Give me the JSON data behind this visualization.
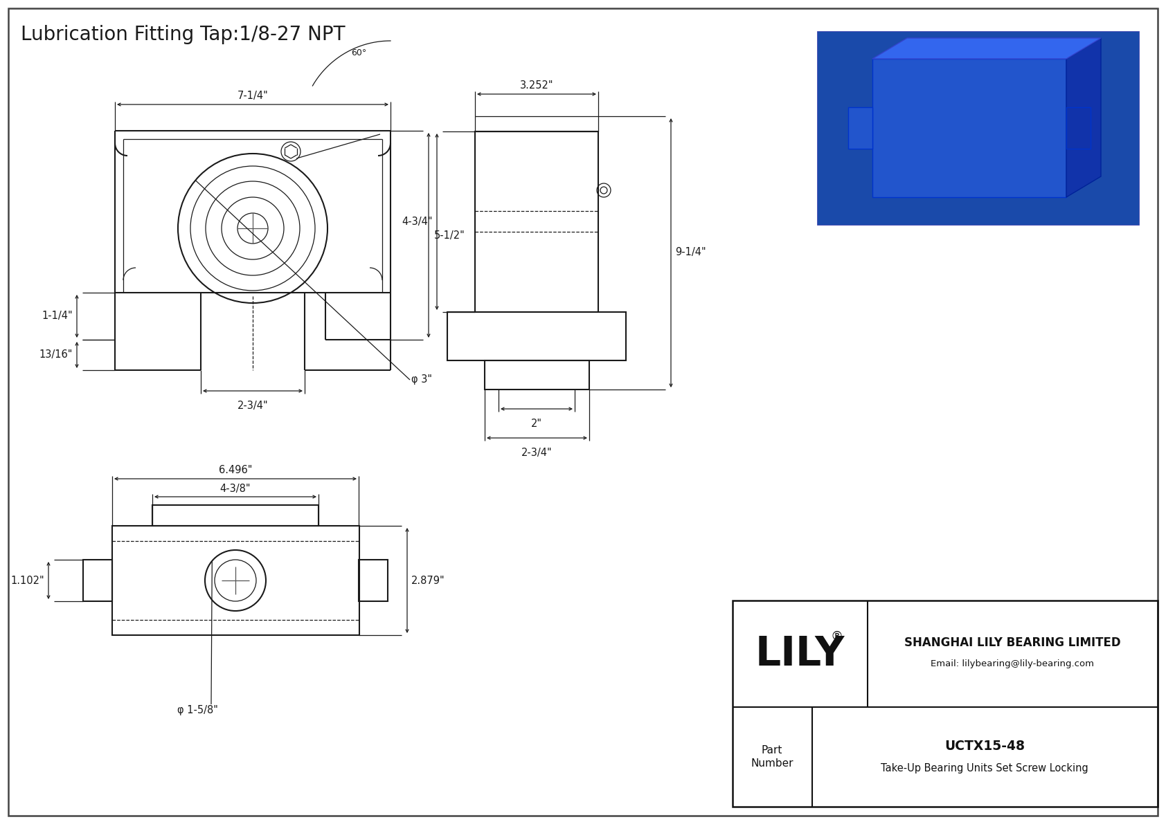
{
  "title": "Lubrication Fitting Tap:1/8-27 NPT",
  "bg_color": "#ffffff",
  "line_color": "#1a1a1a",
  "company_name": "SHANGHAI LILY BEARING LIMITED",
  "company_email": "Email: lilybearing@lily-bearing.com",
  "part_number": "UCTX15-48",
  "part_desc": "Take-Up Bearing Units Set Screw Locking",
  "lily_text": "LILY",
  "reg_symbol": "®",
  "dim_7_14": "7-1/4\"",
  "dim_1_14": "1-1/4\"",
  "dim_5_12": "5-1/2\"",
  "dim_13_16": "13/16\"",
  "dim_2_34_front": "2-3/4\"",
  "dim_d3": "φ 3\"",
  "dim_60": "60°",
  "dim_3252": "3.252\"",
  "dim_4_34": "4-3/4\"",
  "dim_9_14": "9-1/4\"",
  "dim_2": "2\"",
  "dim_2_34_side": "2-3/4\"",
  "dim_6496": "6.496\"",
  "dim_4_38": "4-3/8\"",
  "dim_2879": "2.879\"",
  "dim_1102": "1.102\"",
  "dim_d1_58": "φ 1-5/8\""
}
